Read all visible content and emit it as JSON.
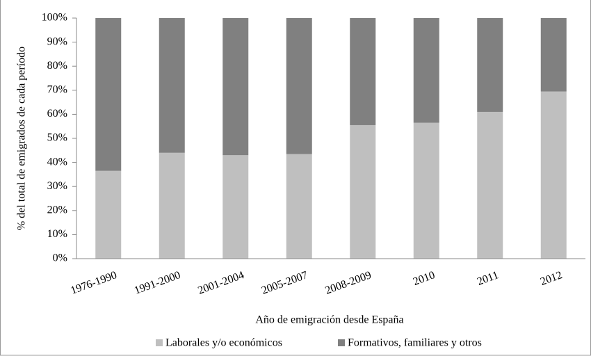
{
  "chart_data": {
    "type": "stacked_bar",
    "x_label": "Año de emigración desde España",
    "y_label": "% del total de emigrados de cada período",
    "categories": [
      "1976-1990",
      "1991-2000",
      "2001-2004",
      "2005-2007",
      "2008-2009",
      "2010",
      "2011",
      "2012"
    ],
    "series": [
      {
        "name": "Laborales y/o económicos",
        "color": "#bfbfbf",
        "values": [
          36.5,
          44,
          43,
          43.5,
          55.5,
          56.5,
          61,
          69.5
        ]
      },
      {
        "name": "Formativos, familiares y otros",
        "color": "#808080",
        "values": [
          63.5,
          56,
          57,
          56.5,
          44.5,
          43.5,
          39,
          30.5
        ]
      }
    ],
    "ylim": [
      0,
      100
    ],
    "yticks": [
      {
        "value": 0,
        "label": "0%"
      },
      {
        "value": 10,
        "label": "10%"
      },
      {
        "value": 20,
        "label": "20%"
      },
      {
        "value": 30,
        "label": "30%"
      },
      {
        "value": 40,
        "label": "40%"
      },
      {
        "value": 50,
        "label": "50%"
      },
      {
        "value": 60,
        "label": "60%"
      },
      {
        "value": 70,
        "label": "70%"
      },
      {
        "value": 80,
        "label": "80%"
      },
      {
        "value": 90,
        "label": "90%"
      },
      {
        "value": 100,
        "label": "100%"
      }
    ],
    "legend": "bottom"
  }
}
